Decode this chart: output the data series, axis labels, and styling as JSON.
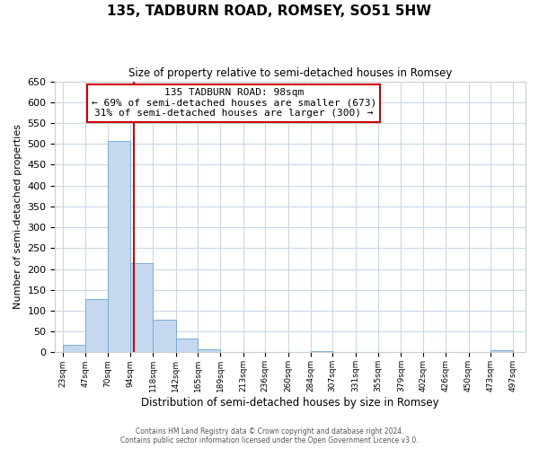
{
  "title": "135, TADBURN ROAD, ROMSEY, SO51 5HW",
  "subtitle": "Size of property relative to semi-detached houses in Romsey",
  "xlabel": "Distribution of semi-detached houses by size in Romsey",
  "ylabel": "Number of semi-detached properties",
  "bar_edges": [
    23,
    47,
    70,
    94,
    118,
    142,
    165,
    189,
    213,
    236,
    260,
    284,
    307,
    331,
    355,
    379,
    402,
    426,
    450,
    473,
    497
  ],
  "bar_heights": [
    18,
    128,
    508,
    215,
    78,
    33,
    8,
    2,
    1,
    0,
    0,
    3,
    0,
    0,
    0,
    0,
    0,
    0,
    0,
    5
  ],
  "tick_labels": [
    "23sqm",
    "47sqm",
    "70sqm",
    "94sqm",
    "118sqm",
    "142sqm",
    "165sqm",
    "189sqm",
    "213sqm",
    "236sqm",
    "260sqm",
    "284sqm",
    "307sqm",
    "331sqm",
    "355sqm",
    "379sqm",
    "402sqm",
    "426sqm",
    "450sqm",
    "473sqm",
    "497sqm"
  ],
  "bar_color": "#c5d8f0",
  "bar_edge_color": "#7aadd4",
  "property_line_x": 98,
  "property_line_color": "#cc0000",
  "annotation_line1": "135 TADBURN ROAD: 98sqm",
  "annotation_line2": "← 69% of semi-detached houses are smaller (673)",
  "annotation_line3": "31% of semi-detached houses are larger (300) →",
  "annotation_box_color": "#ffffff",
  "annotation_box_edge": "#cc0000",
  "ylim": [
    0,
    650
  ],
  "yticks": [
    0,
    50,
    100,
    150,
    200,
    250,
    300,
    350,
    400,
    450,
    500,
    550,
    600,
    650
  ],
  "footer_line1": "Contains HM Land Registry data © Crown copyright and database right 2024.",
  "footer_line2": "Contains public sector information licensed under the Open Government Licence v3.0.",
  "background_color": "#ffffff",
  "grid_color": "#c8d8e8",
  "title_fontsize": 11,
  "subtitle_fontsize": 8.5
}
